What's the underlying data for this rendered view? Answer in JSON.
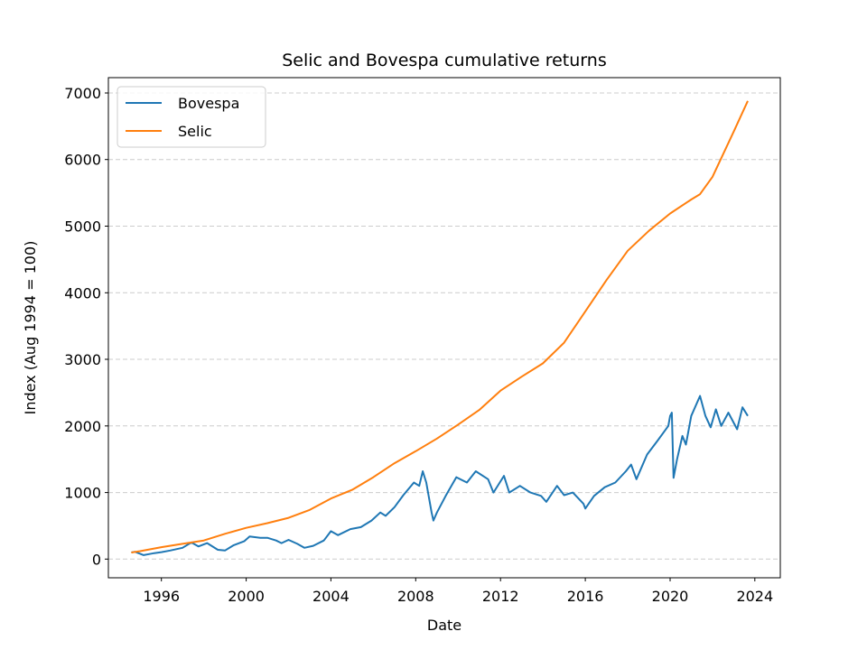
{
  "chart_data": {
    "type": "line",
    "title": "Selic and Bovespa cumulative returns",
    "xlabel": "Date",
    "ylabel": "Index (Aug 1994 = 100)",
    "x_range": [
      "1993-07-01",
      "2025-01-01"
    ],
    "xlim": [
      1993.5,
      2025.2
    ],
    "ylim": [
      -280,
      7230
    ],
    "x_ticks": [
      "1996",
      "2000",
      "2004",
      "2008",
      "2012",
      "2016",
      "2020",
      "2024"
    ],
    "y_ticks": [
      0,
      1000,
      2000,
      3000,
      4000,
      5000,
      6000,
      7000
    ],
    "grid": {
      "axis": "y",
      "style": "dashed",
      "color": "#cccccc"
    },
    "legend": {
      "placement": "upper left"
    },
    "series": [
      {
        "name": "Bovespa",
        "color": "#1f77b4",
        "points": [
          [
            "1994-08-01",
            100
          ],
          [
            "1994-10-01",
            110
          ],
          [
            "1995-01-01",
            80
          ],
          [
            "1995-03-01",
            60
          ],
          [
            "1995-06-01",
            75
          ],
          [
            "1995-09-01",
            90
          ],
          [
            "1996-01-01",
            105
          ],
          [
            "1996-06-01",
            130
          ],
          [
            "1997-01-01",
            170
          ],
          [
            "1997-06-01",
            250
          ],
          [
            "1997-10-01",
            190
          ],
          [
            "1998-03-01",
            240
          ],
          [
            "1998-09-01",
            140
          ],
          [
            "1999-01-01",
            130
          ],
          [
            "1999-06-01",
            210
          ],
          [
            "1999-12-01",
            270
          ],
          [
            "2000-03-01",
            340
          ],
          [
            "2000-09-01",
            320
          ],
          [
            "2001-01-01",
            320
          ],
          [
            "2001-06-01",
            280
          ],
          [
            "2001-09-01",
            240
          ],
          [
            "2002-01-01",
            290
          ],
          [
            "2002-06-01",
            230
          ],
          [
            "2002-10-01",
            170
          ],
          [
            "2003-03-01",
            200
          ],
          [
            "2003-09-01",
            280
          ],
          [
            "2004-01-01",
            420
          ],
          [
            "2004-05-01",
            360
          ],
          [
            "2004-12-01",
            450
          ],
          [
            "2005-06-01",
            480
          ],
          [
            "2005-12-01",
            580
          ],
          [
            "2006-05-01",
            700
          ],
          [
            "2006-08-01",
            650
          ],
          [
            "2007-01-01",
            780
          ],
          [
            "2007-06-01",
            960
          ],
          [
            "2007-12-01",
            1150
          ],
          [
            "2008-03-01",
            1100
          ],
          [
            "2008-05-01",
            1320
          ],
          [
            "2008-07-01",
            1150
          ],
          [
            "2008-10-01",
            700
          ],
          [
            "2008-11-01",
            580
          ],
          [
            "2009-01-01",
            700
          ],
          [
            "2009-06-01",
            950
          ],
          [
            "2009-12-01",
            1230
          ],
          [
            "2010-06-01",
            1150
          ],
          [
            "2010-11-01",
            1320
          ],
          [
            "2011-06-01",
            1200
          ],
          [
            "2011-09-01",
            1000
          ],
          [
            "2012-03-01",
            1250
          ],
          [
            "2012-06-01",
            1000
          ],
          [
            "2012-12-01",
            1100
          ],
          [
            "2013-06-01",
            1000
          ],
          [
            "2013-12-01",
            950
          ],
          [
            "2014-03-01",
            860
          ],
          [
            "2014-09-01",
            1100
          ],
          [
            "2015-01-01",
            960
          ],
          [
            "2015-06-01",
            1000
          ],
          [
            "2015-12-01",
            830
          ],
          [
            "2016-01-01",
            760
          ],
          [
            "2016-06-01",
            950
          ],
          [
            "2016-12-01",
            1080
          ],
          [
            "2017-06-01",
            1150
          ],
          [
            "2017-12-01",
            1320
          ],
          [
            "2018-03-01",
            1420
          ],
          [
            "2018-06-01",
            1200
          ],
          [
            "2018-12-01",
            1570
          ],
          [
            "2019-06-01",
            1780
          ],
          [
            "2019-12-01",
            2000
          ],
          [
            "2020-01-01",
            2150
          ],
          [
            "2020-02-01",
            2200
          ],
          [
            "2020-03-01",
            1220
          ],
          [
            "2020-05-01",
            1500
          ],
          [
            "2020-08-01",
            1850
          ],
          [
            "2020-10-01",
            1720
          ],
          [
            "2021-01-01",
            2150
          ],
          [
            "2021-06-01",
            2450
          ],
          [
            "2021-09-01",
            2150
          ],
          [
            "2021-12-01",
            1980
          ],
          [
            "2022-03-01",
            2250
          ],
          [
            "2022-06-01",
            2000
          ],
          [
            "2022-10-01",
            2200
          ],
          [
            "2023-03-01",
            1950
          ],
          [
            "2023-06-01",
            2280
          ],
          [
            "2023-09-01",
            2150
          ]
        ]
      },
      {
        "name": "Selic",
        "color": "#ff7f0e",
        "points": [
          [
            "1994-08-01",
            100
          ],
          [
            "1995-01-01",
            120
          ],
          [
            "1996-01-01",
            180
          ],
          [
            "1997-01-01",
            230
          ],
          [
            "1998-01-01",
            280
          ],
          [
            "1999-01-01",
            380
          ],
          [
            "2000-01-01",
            470
          ],
          [
            "2001-01-01",
            540
          ],
          [
            "2002-01-01",
            620
          ],
          [
            "2003-01-01",
            740
          ],
          [
            "2004-01-01",
            910
          ],
          [
            "2005-01-01",
            1040
          ],
          [
            "2006-01-01",
            1230
          ],
          [
            "2007-01-01",
            1440
          ],
          [
            "2008-01-01",
            1620
          ],
          [
            "2009-01-01",
            1810
          ],
          [
            "2010-01-01",
            2020
          ],
          [
            "2011-01-01",
            2240
          ],
          [
            "2012-01-01",
            2530
          ],
          [
            "2013-01-01",
            2740
          ],
          [
            "2014-01-01",
            2940
          ],
          [
            "2015-01-01",
            3250
          ],
          [
            "2016-01-01",
            3720
          ],
          [
            "2017-01-01",
            4190
          ],
          [
            "2018-01-01",
            4630
          ],
          [
            "2019-01-01",
            4930
          ],
          [
            "2020-01-01",
            5190
          ],
          [
            "2021-01-01",
            5400
          ],
          [
            "2021-06-01",
            5480
          ],
          [
            "2022-01-01",
            5740
          ],
          [
            "2023-01-01",
            6420
          ],
          [
            "2023-09-01",
            6880
          ]
        ]
      }
    ]
  }
}
